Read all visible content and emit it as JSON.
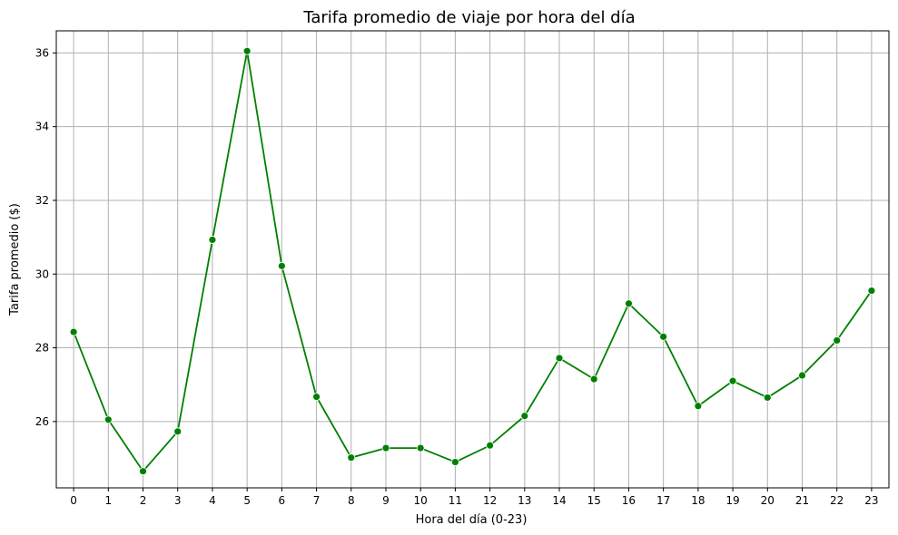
{
  "chart_data": {
    "type": "line",
    "title": "Tarifa promedio de viaje por hora del día",
    "xlabel": "Hora del día (0-23)",
    "ylabel": "Tarifa promedio ($)",
    "x": [
      0,
      1,
      2,
      3,
      4,
      5,
      6,
      7,
      8,
      9,
      10,
      11,
      12,
      13,
      14,
      15,
      16,
      17,
      18,
      19,
      20,
      21,
      22,
      23
    ],
    "x_tick_labels": [
      "0",
      "1",
      "2",
      "3",
      "4",
      "5",
      "6",
      "7",
      "8",
      "9",
      "10",
      "11",
      "12",
      "13",
      "14",
      "15",
      "16",
      "17",
      "18",
      "19",
      "20",
      "21",
      "22",
      "23"
    ],
    "y_ticks": [
      26,
      28,
      30,
      32,
      34,
      36
    ],
    "y_tick_labels": [
      "26",
      "28",
      "30",
      "32",
      "34",
      "36"
    ],
    "xlim": [
      -0.5,
      23.5
    ],
    "ylim": [
      24.2,
      36.6
    ],
    "grid": true,
    "series": [
      {
        "values": [
          28.43,
          26.05,
          24.65,
          25.73,
          30.93,
          36.05,
          30.22,
          26.67,
          25.02,
          25.28,
          25.28,
          24.9,
          25.35,
          26.15,
          27.72,
          27.15,
          29.2,
          28.3,
          26.42,
          27.1,
          26.65,
          27.25,
          28.2,
          29.55
        ],
        "color": "#008000",
        "marker": "circle"
      }
    ]
  }
}
